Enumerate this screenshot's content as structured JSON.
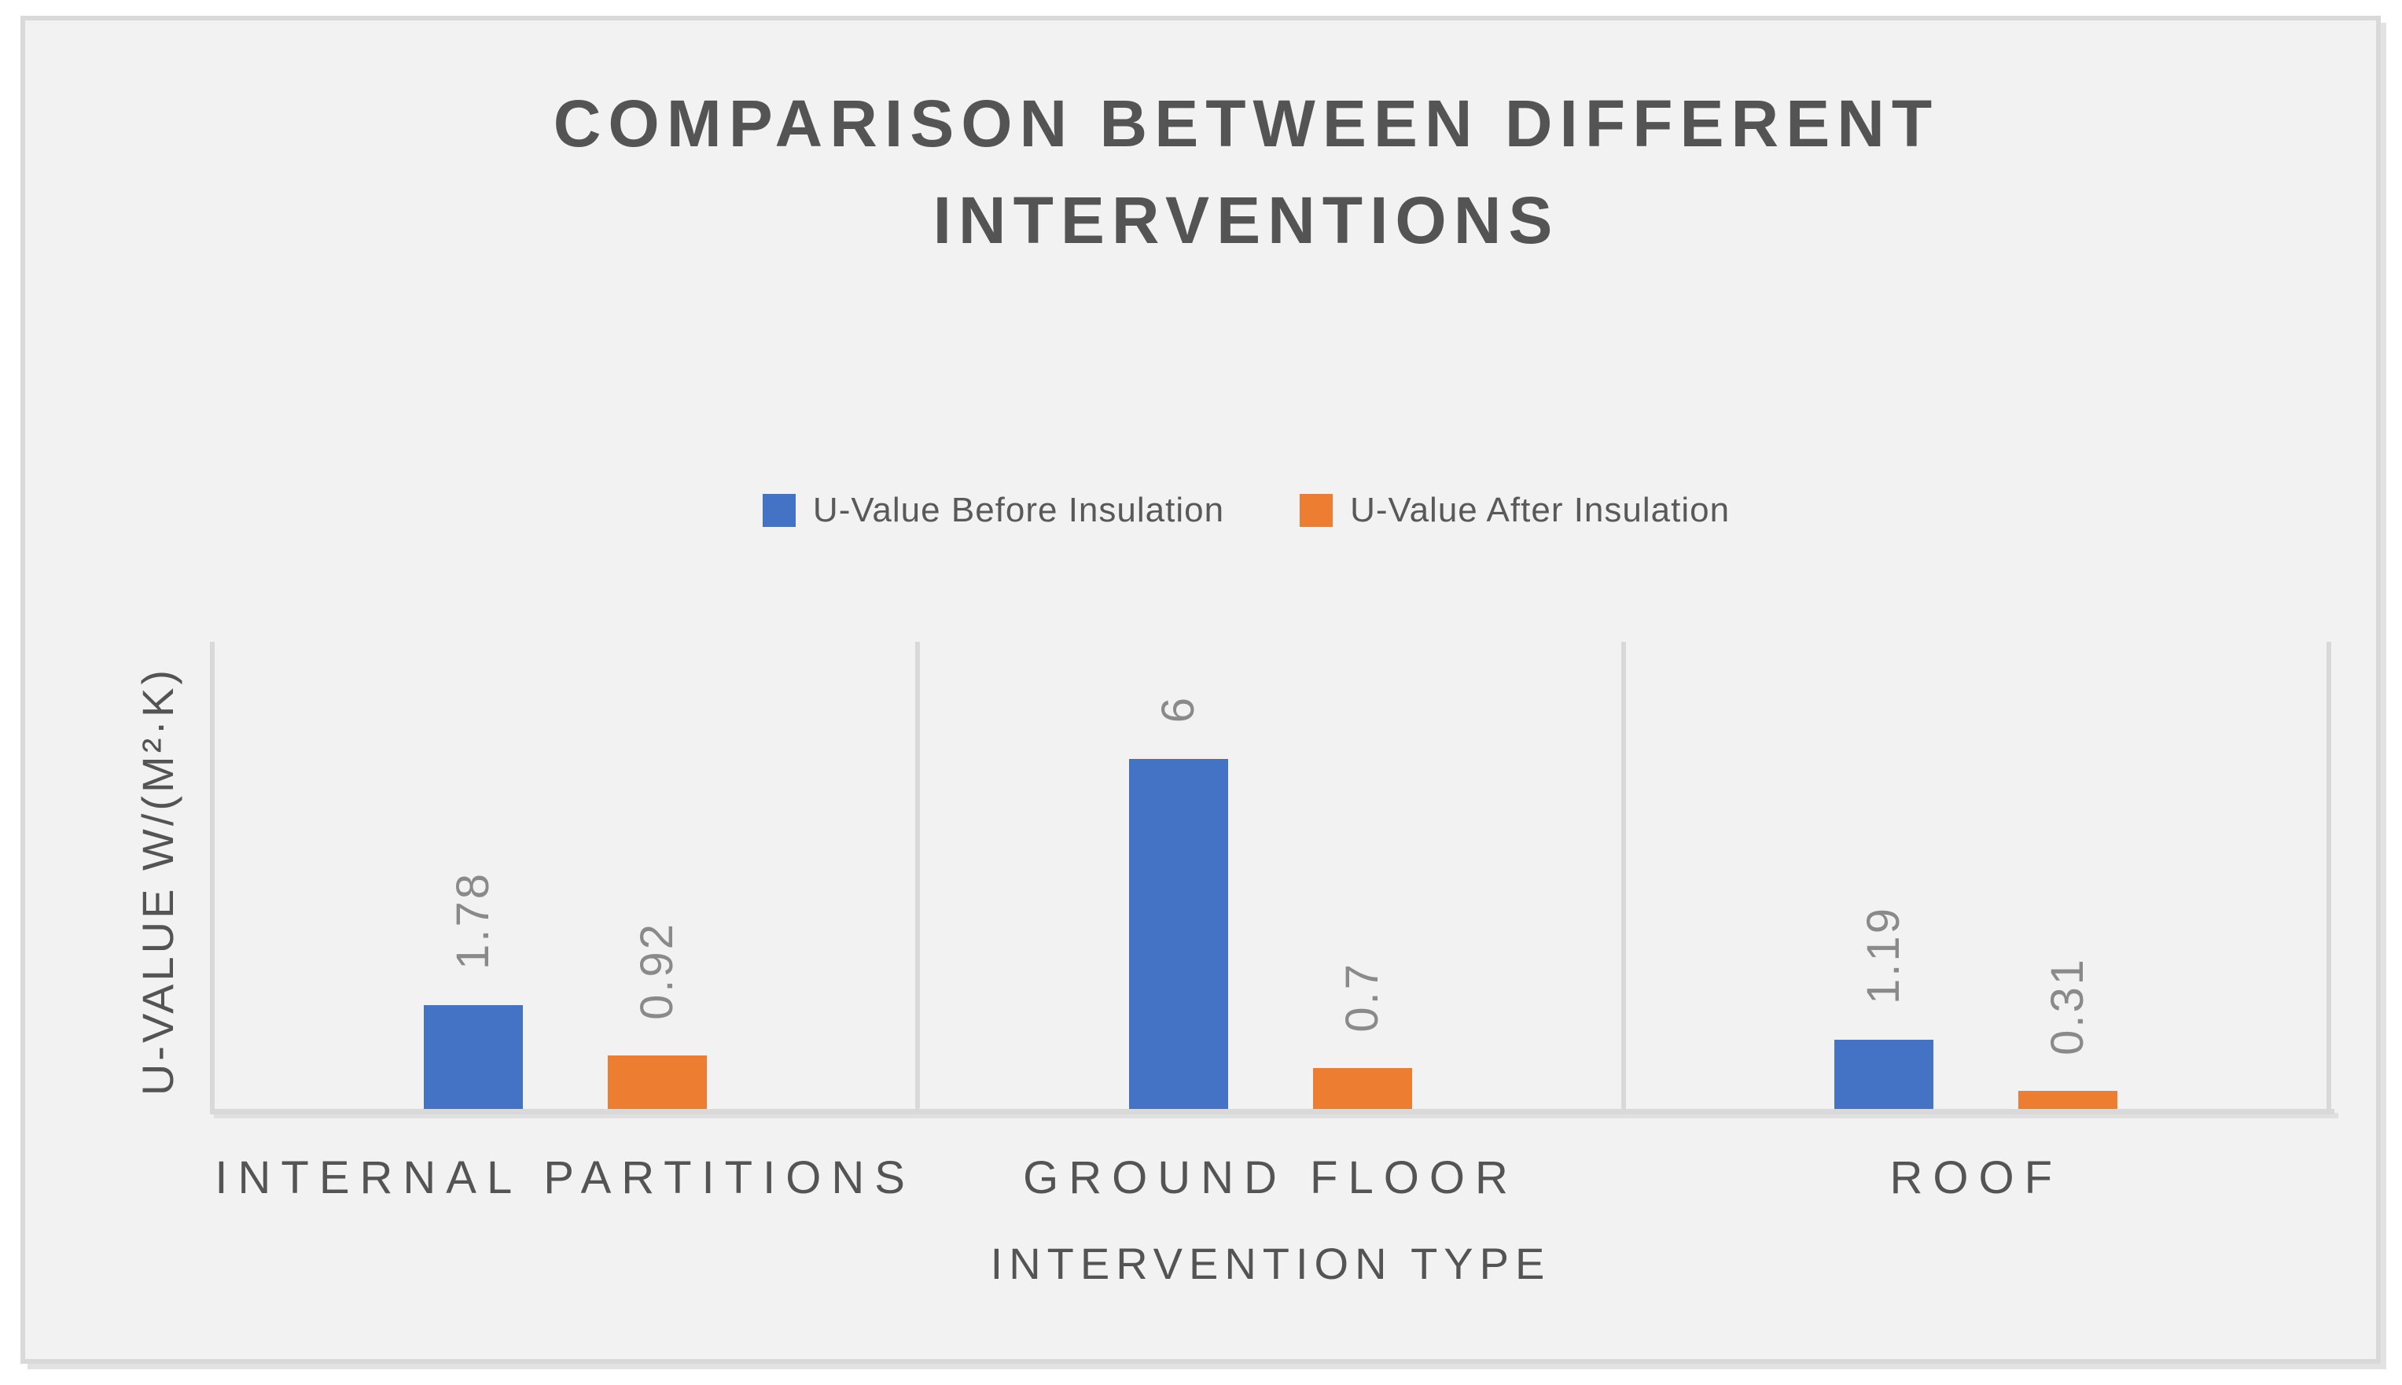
{
  "title": {
    "line1": "COMPARISON BETWEEN DIFFERENT",
    "line2": "INTERVENTIONS"
  },
  "legend": [
    {
      "label": "U-Value Before Insulation",
      "color": "#4472C4"
    },
    {
      "label": "U-Value After Insulation",
      "color": "#ED7D31"
    }
  ],
  "axes": {
    "x_title": "INTERVENTION TYPE",
    "y_title": "U-VALUE W/(M²·K)"
  },
  "chart_data": {
    "type": "bar",
    "title": "COMPARISON BETWEEN DIFFERENT INTERVENTIONS",
    "xlabel": "INTERVENTION TYPE",
    "ylabel": "U-VALUE W/(M²·K)",
    "categories": [
      "INTERNAL PARTITIONS",
      "GROUND FLOOR",
      "ROOF"
    ],
    "series": [
      {
        "name": "U-Value Before Insulation",
        "color": "#4472C4",
        "values": [
          1.78,
          6,
          1.19
        ]
      },
      {
        "name": "U-Value After Insulation",
        "color": "#ED7D31",
        "values": [
          0.92,
          0.7,
          0.31
        ]
      }
    ],
    "data_labels": [
      [
        "1.78",
        "0.92"
      ],
      [
        "6",
        "0.7"
      ],
      [
        "1.19",
        "0.31"
      ]
    ],
    "ylim": [
      0,
      8
    ],
    "y_axis_labels_visible": false,
    "grid": "vertical-category-boundaries",
    "legend_position": "top-center"
  },
  "colors": {
    "frame_border": "#d9d9d9",
    "plot_background": "#f2f2f2",
    "page_background": "#ffffff",
    "gridline": "#d9d9d9",
    "axis_line": "#d9d9d9",
    "title_text": "#545454",
    "axis_text": "#545454",
    "legend_text": "#595959",
    "data_label_text": "#8a8a8a"
  }
}
